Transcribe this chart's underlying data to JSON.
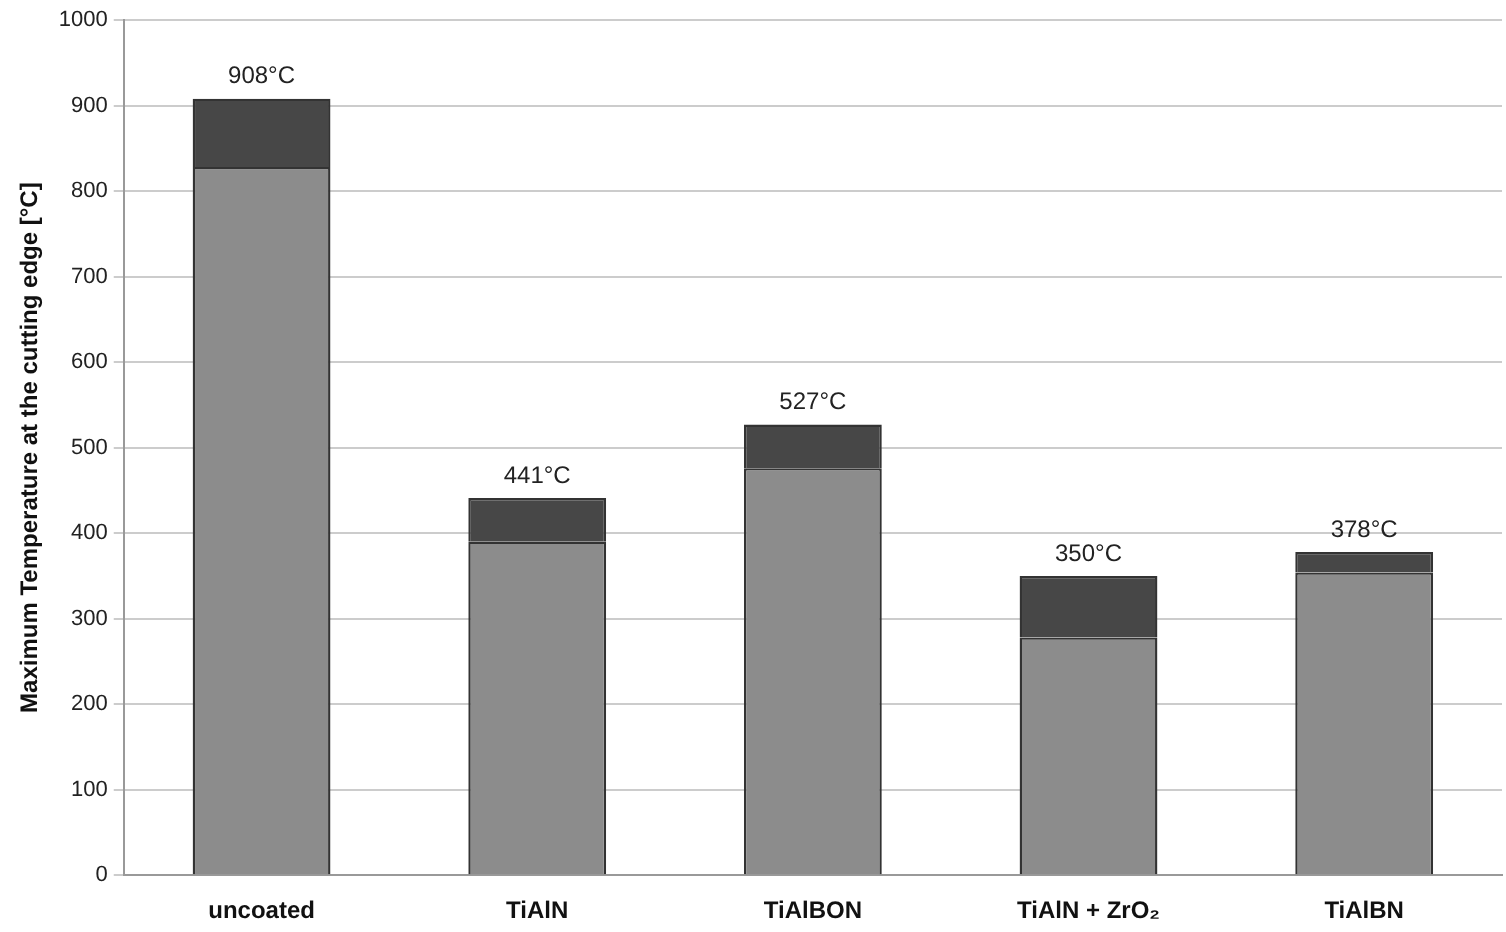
{
  "chart_data": {
    "type": "bar",
    "stacked": true,
    "ylabel": "Maximum Temperature at the cutting edge [°C]",
    "categories": [
      "uncoated",
      "TiAlN",
      "TiAlBON",
      "TiAlN + ZrO₂",
      "TiAlBN"
    ],
    "series": [
      {
        "color": "#8c8c8c",
        "values": [
          828,
          390,
          476,
          278,
          354
        ]
      },
      {
        "color": "#474747",
        "values": [
          80,
          51,
          51,
          72,
          24
        ]
      }
    ],
    "totals": [
      "908°C",
      "441°C",
      "527°C",
      "350°C",
      "378°C"
    ],
    "ylim": [
      0,
      1000
    ],
    "yticks": [
      0,
      100,
      200,
      300,
      400,
      500,
      600,
      700,
      800,
      900,
      1000
    ],
    "grid": "y",
    "legend": false
  }
}
